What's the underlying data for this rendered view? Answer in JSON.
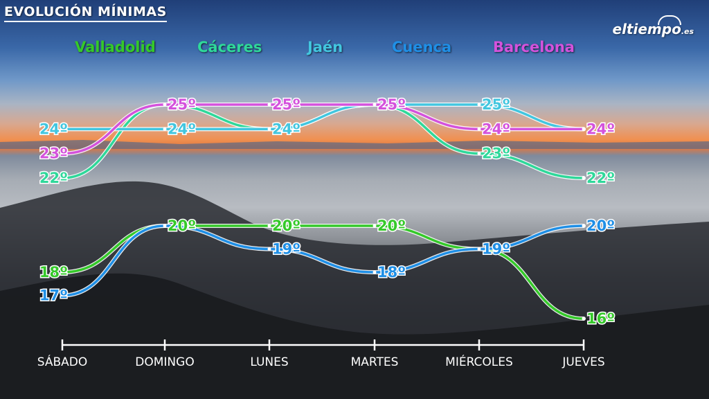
{
  "title": "EVOLUCIÓN MÍNIMAS",
  "brand": {
    "main": "eltiempo",
    "suffix": ".es",
    "icon": "cloud-icon"
  },
  "chart_data": {
    "type": "line",
    "title": "EVOLUCIÓN MÍNIMAS",
    "categories": [
      "SÁBADO",
      "DOMINGO",
      "LUNES",
      "MARTES",
      "MIÉRCOLES",
      "JUEVES"
    ],
    "unit": "º",
    "legend_position": "top",
    "grid": false,
    "series": [
      {
        "name": "Valladolid",
        "color": "#35c92a",
        "values": [
          18,
          20,
          20,
          20,
          19,
          16
        ]
      },
      {
        "name": "Cáceres",
        "color": "#2fd89a",
        "values": [
          22,
          25,
          24,
          25,
          23,
          22
        ]
      },
      {
        "name": "Jaén",
        "color": "#42c6df",
        "values": [
          24,
          24,
          24,
          25,
          25,
          24
        ]
      },
      {
        "name": "Cuenca",
        "color": "#1f8fe6",
        "values": [
          17,
          20,
          19,
          18,
          19,
          20
        ]
      },
      {
        "name": "Barcelona",
        "color": "#d452dc",
        "values": [
          23,
          25,
          25,
          25,
          24,
          24
        ]
      }
    ],
    "value_labels": [
      {
        "series": "Jaén",
        "index": 0,
        "text": "24º"
      },
      {
        "series": "Barcelona",
        "index": 0,
        "text": "23º"
      },
      {
        "series": "Cáceres",
        "index": 0,
        "text": "22º"
      },
      {
        "series": "Valladolid",
        "index": 0,
        "text": "18º"
      },
      {
        "series": "Cuenca",
        "index": 0,
        "text": "17º"
      },
      {
        "series": "Barcelona",
        "index": 1,
        "text": "25º"
      },
      {
        "series": "Jaén",
        "index": 1,
        "text": "24º"
      },
      {
        "series": "Valladolid",
        "index": 1,
        "text": "20º"
      },
      {
        "series": "Barcelona",
        "index": 2,
        "text": "25º"
      },
      {
        "series": "Jaén",
        "index": 2,
        "text": "24º"
      },
      {
        "series": "Valladolid",
        "index": 2,
        "text": "20º"
      },
      {
        "series": "Cuenca",
        "index": 2,
        "text": "19º"
      },
      {
        "series": "Barcelona",
        "index": 3,
        "text": "25º"
      },
      {
        "series": "Valladolid",
        "index": 3,
        "text": "20º"
      },
      {
        "series": "Cuenca",
        "index": 3,
        "text": "18º"
      },
      {
        "series": "Jaén",
        "index": 4,
        "text": "25º"
      },
      {
        "series": "Barcelona",
        "index": 4,
        "text": "24º"
      },
      {
        "series": "Cáceres",
        "index": 4,
        "text": "23º"
      },
      {
        "series": "Cuenca",
        "index": 4,
        "text": "19º"
      },
      {
        "series": "Barcelona",
        "index": 5,
        "text": "24º"
      },
      {
        "series": "Cáceres",
        "index": 5,
        "text": "22º"
      },
      {
        "series": "Cuenca",
        "index": 5,
        "text": "20º"
      },
      {
        "series": "Valladolid",
        "index": 5,
        "text": "16º"
      }
    ]
  }
}
